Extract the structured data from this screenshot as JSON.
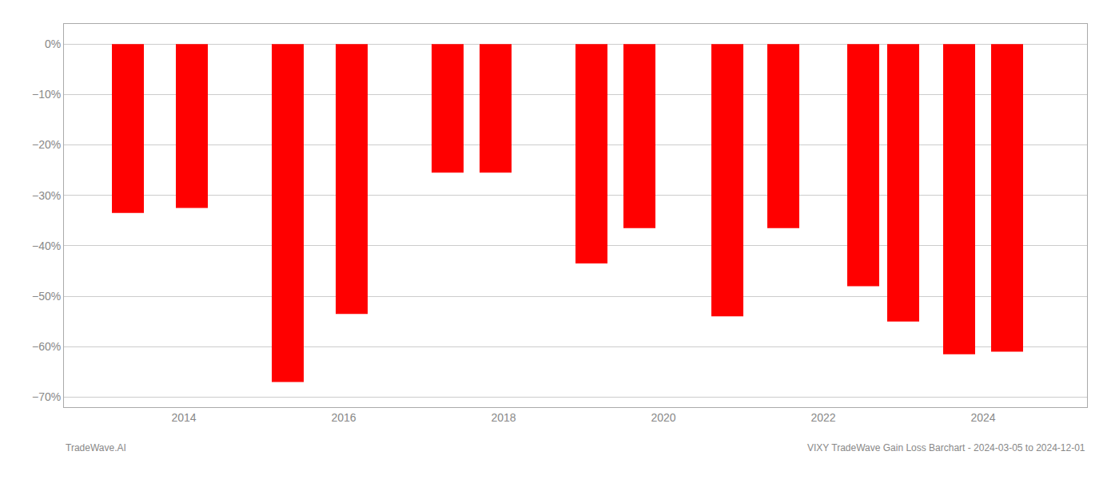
{
  "chart_data": {
    "type": "bar",
    "x": [
      2013.3,
      2014.1,
      2015.3,
      2016.1,
      2017.3,
      2017.9,
      2019.1,
      2019.7,
      2020.8,
      2021.5,
      2022.5,
      2023.0,
      2023.7,
      2024.3
    ],
    "values": [
      -0.335,
      -0.325,
      -0.67,
      -0.535,
      -0.255,
      -0.255,
      -0.435,
      -0.365,
      -0.54,
      -0.365,
      -0.48,
      -0.55,
      -0.615,
      -0.61
    ],
    "color": "#ff0000",
    "xlim": [
      2012.5,
      2025.3
    ],
    "xticks": [
      2014,
      2016,
      2018,
      2020,
      2022,
      2024
    ],
    "ylim": [
      -0.72,
      0.04
    ],
    "yticks": [
      {
        "value": 0.0,
        "label": "0%"
      },
      {
        "value": -0.1,
        "label": "−10%"
      },
      {
        "value": -0.2,
        "label": "−20%"
      },
      {
        "value": -0.3,
        "label": "−30%"
      },
      {
        "value": -0.4,
        "label": "−40%"
      },
      {
        "value": -0.5,
        "label": "−50%"
      },
      {
        "value": -0.6,
        "label": "−60%"
      },
      {
        "value": -0.7,
        "label": "−70%"
      }
    ],
    "grid": true,
    "annotations": [
      "TradeWave.AI",
      "VIXY TradeWave Gain Loss Barchart - 2024-03-05 to 2024-12-01"
    ]
  }
}
